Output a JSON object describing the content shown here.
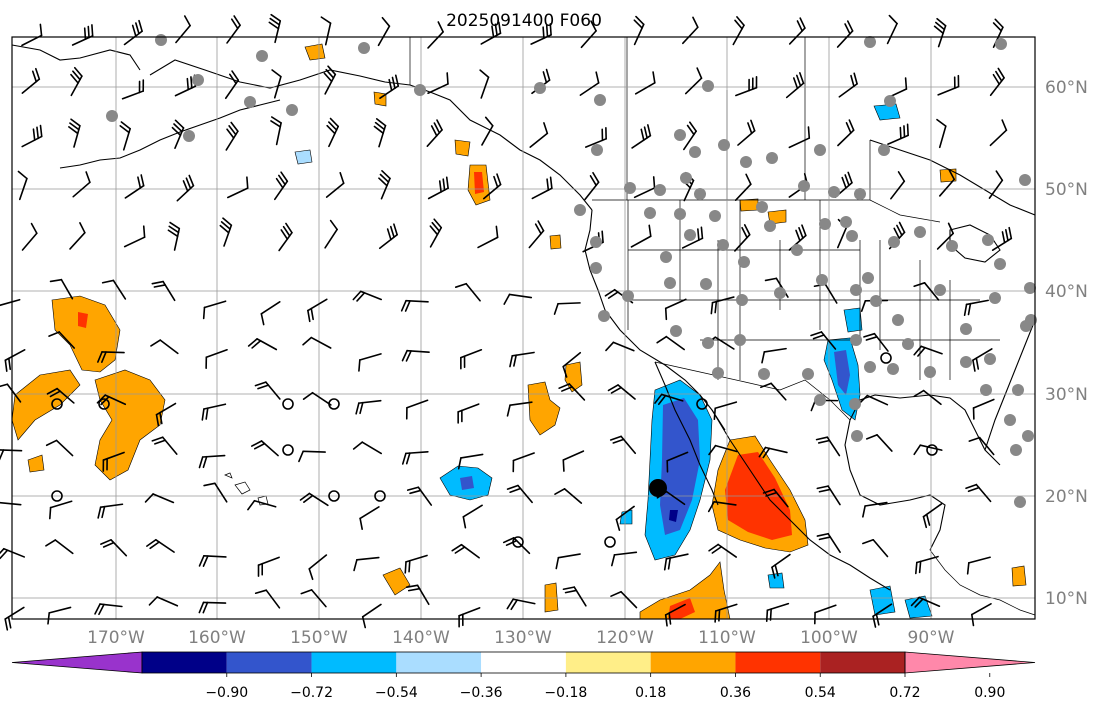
{
  "title": "2025091400 F060",
  "lat_labels": [
    "60°N",
    "50°N",
    "40°N",
    "30°N",
    "20°N",
    "10°N"
  ],
  "lon_labels": [
    "170°W",
    "160°W",
    "150°W",
    "140°W",
    "130°W",
    "120°W",
    "110°W",
    "100°W",
    "90°W"
  ],
  "colorbar": {
    "tick_labels": [
      "−0.90",
      "−0.72",
      "−0.54",
      "−0.36",
      "−0.18",
      "0.18",
      "0.36",
      "0.54",
      "0.72",
      "0.90"
    ],
    "colors": [
      "#9933cc",
      "#000088",
      "#3355cc",
      "#00bbff",
      "#aaddff",
      "#ffffff",
      "#ffee88",
      "#ffa500",
      "#ff3300",
      "#aa2222",
      "#ff88aa"
    ]
  },
  "field_colors": {
    "orange": "#ffa500",
    "red_orange": "#ff3300",
    "cyan": "#00bbff",
    "blue": "#3355cc",
    "dark_blue": "#000088",
    "light_blue": "#aaddff",
    "yellow": "#ffee88",
    "station_gray": "#888888"
  }
}
